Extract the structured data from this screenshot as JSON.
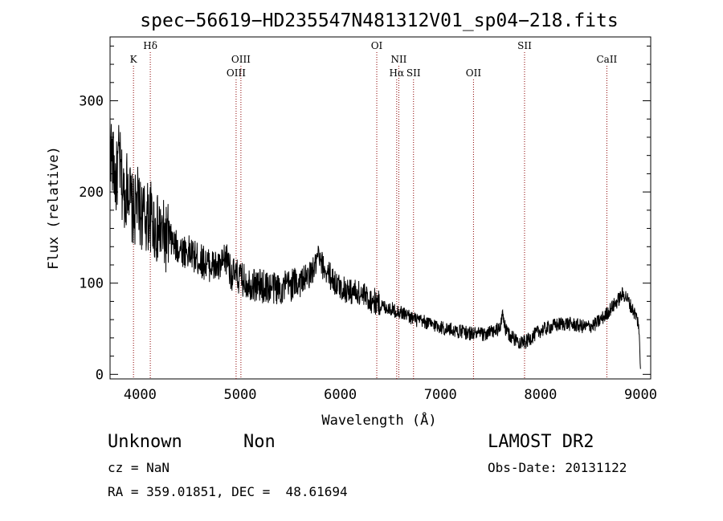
{
  "chart_data": {
    "type": "line",
    "title": "spec−56619−HD235547N481312V01_sp04−218.fits",
    "xlabel": "Wavelength (Å)",
    "ylabel": "Flux (relative)",
    "xlim": [
      3700,
      9100
    ],
    "ylim": [
      -5,
      370
    ],
    "x_ticks": [
      4000,
      5000,
      6000,
      7000,
      8000,
      9000
    ],
    "y_ticks": [
      0,
      100,
      200,
      300
    ],
    "grid": false,
    "line_color": "#000000",
    "marker_line_color": "#8b0000",
    "series": [
      {
        "x": [
          3700,
          3730,
          3760,
          3790,
          3820,
          3850,
          3880,
          3910,
          3940,
          3970,
          4000,
          4050,
          4100,
          4150,
          4200,
          4250,
          4300,
          4350,
          4400,
          4450,
          4500,
          4550,
          4600,
          4650,
          4700,
          4750,
          4800,
          4850,
          4880,
          4900,
          4950,
          5000,
          5050,
          5100,
          5150,
          5200,
          5250,
          5300,
          5350,
          5400,
          5450,
          5500,
          5550,
          5600,
          5650,
          5700,
          5750,
          5780,
          5800,
          5850,
          5900,
          5950,
          6000,
          6050,
          6100,
          6150,
          6200,
          6250,
          6300,
          6350,
          6400,
          6450,
          6500,
          6550,
          6600,
          6650,
          6700,
          6750,
          6800,
          6850,
          6900,
          6950,
          7000,
          7050,
          7100,
          7150,
          7200,
          7250,
          7300,
          7350,
          7400,
          7450,
          7500,
          7550,
          7600,
          7620,
          7650,
          7700,
          7750,
          7800,
          7850,
          7900,
          7950,
          8000,
          8050,
          8100,
          8150,
          8200,
          8250,
          8300,
          8350,
          8400,
          8450,
          8500,
          8550,
          8600,
          8650,
          8700,
          8750,
          8800,
          8820,
          8850,
          8880,
          8900,
          8950,
          8980,
          9000
        ],
        "y": [
          255,
          230,
          210,
          240,
          205,
          195,
          215,
          185,
          175,
          190,
          178,
          170,
          175,
          160,
          155,
          150,
          148,
          140,
          138,
          135,
          133,
          128,
          125,
          122,
          120,
          118,
          116,
          125,
          128,
          112,
          108,
          105,
          102,
          100,
          98,
          97,
          96,
          95,
          95,
          94,
          96,
          98,
          100,
          103,
          105,
          110,
          118,
          130,
          122,
          115,
          108,
          100,
          95,
          93,
          91,
          90,
          88,
          85,
          82,
          80,
          76,
          74,
          72,
          70,
          68,
          66,
          63,
          60,
          58,
          57,
          55,
          54,
          52,
          50,
          49,
          48,
          47,
          46,
          45,
          45,
          44,
          44,
          46,
          48,
          50,
          70,
          48,
          42,
          38,
          36,
          35,
          40,
          44,
          48,
          50,
          52,
          54,
          55,
          56,
          55,
          54,
          53,
          52,
          53,
          55,
          60,
          65,
          72,
          78,
          85,
          88,
          86,
          80,
          75,
          65,
          55,
          0
        ]
      }
    ],
    "line_markers": [
      {
        "label": "K",
        "x": 3934,
        "row": 2
      },
      {
        "label": "Hδ",
        "x": 4102,
        "row": 1
      },
      {
        "label": "OIII",
        "x": 4959,
        "row": 3
      },
      {
        "label": "OIII",
        "x": 5007,
        "row": 2
      },
      {
        "label": "OI",
        "x": 6364,
        "row": 1
      },
      {
        "label": "NII",
        "x": 6584,
        "row": 2
      },
      {
        "label": "Hα",
        "x": 6563,
        "row": 3
      },
      {
        "label": "SII",
        "x": 6731,
        "row": 3
      },
      {
        "label": "OII",
        "x": 7330,
        "row": 3
      },
      {
        "label": "SII",
        "x": 7840,
        "row": 1
      },
      {
        "label": "CaII",
        "x": 8662,
        "row": 2
      }
    ]
  },
  "info": {
    "object_type": "Unknown",
    "object_class": "Non",
    "survey": "LAMOST DR2",
    "redshift": "cz = NaN",
    "obs_date": "Obs-Date: 20131122",
    "coords": "RA = 359.01851, DEC =  48.61694"
  }
}
